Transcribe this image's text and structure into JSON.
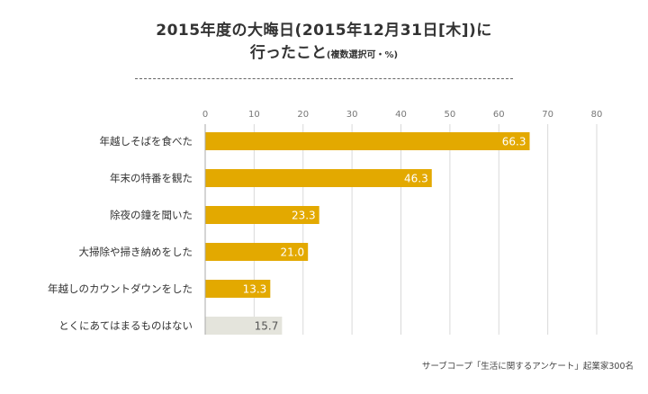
{
  "title": {
    "line1": "2015年度の大晦日(2015年12月31日[木])に",
    "line2": "行ったこと",
    "line2_note": "(複数選択可・%)"
  },
  "source": "サーブコープ「生活に関するアンケート」起業家300名",
  "colors": {
    "bar": "#e3a900",
    "bar_other": "#e4e4dc",
    "grid": "#d9d9d9",
    "axis": "#aaaaaa"
  },
  "chart_data": {
    "type": "bar",
    "orientation": "horizontal",
    "categories": [
      "年越しそばを食べた",
      "年末の特番を観た",
      "除夜の鐘を聞いた",
      "大掃除や掃き納めをした",
      "年越しのカウントダウンをした",
      "とくにあてはまるものはない"
    ],
    "values": [
      66.3,
      46.3,
      23.3,
      21.0,
      13.3,
      15.7
    ],
    "value_labels": [
      "66.3",
      "46.3",
      "23.3",
      "21.0",
      "13.3",
      "15.7"
    ],
    "xlim": [
      0,
      80
    ],
    "xticks": [
      0,
      10,
      20,
      30,
      40,
      50,
      60,
      70,
      80
    ],
    "grid": true,
    "title": "2015年度の大晦日(2015年12月31日[木])に行ったこと(複数選択可・%)"
  }
}
